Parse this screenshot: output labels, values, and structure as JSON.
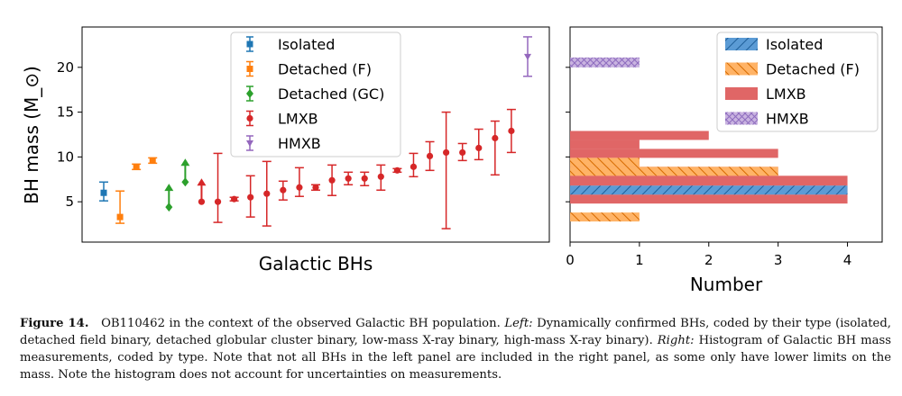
{
  "left_panel": {
    "ylabel": "BH mass (M_⊙)",
    "xlabel": "Galactic BHs",
    "yticks": [
      5,
      10,
      15,
      20
    ],
    "ylim": [
      0.5,
      24.5
    ]
  },
  "right_panel": {
    "xlabel": "Number",
    "xticks": [
      0,
      1,
      2,
      3,
      4
    ],
    "xlim": [
      0,
      4.5
    ]
  },
  "colors": {
    "Isolated": "#1f77b4",
    "Detached (F)": "#ff7f0e",
    "Detached (GC)": "#2ca02c",
    "LMXB": "#d62728",
    "HMXB": "#9467bd",
    "LMXB_hist": "#e06666"
  },
  "chart_data": [
    {
      "type": "scatter",
      "panel": "left",
      "title": "",
      "xlabel": "Galactic BHs",
      "ylabel": "BH mass (M_⊙)",
      "ylim": [
        0.5,
        24.5
      ],
      "legend_position": "top-center",
      "series": [
        {
          "name": "Isolated",
          "points": [
            {
              "x": 1,
              "y": 6.0,
              "lo": 5.1,
              "hi": 7.2
            }
          ]
        },
        {
          "name": "Detached (F)",
          "points": [
            {
              "x": 2,
              "y": 3.3,
              "lo": 2.6,
              "hi": 6.2
            },
            {
              "x": 3,
              "y": 8.9,
              "lo": 8.6,
              "hi": 9.2
            },
            {
              "x": 4,
              "y": 9.6,
              "lo": 9.3,
              "hi": 9.9
            }
          ]
        },
        {
          "name": "Detached (GC)",
          "points": [
            {
              "x": 5,
              "y": 4.4,
              "lower_limit": true
            },
            {
              "x": 6,
              "y": 7.2,
              "lower_limit": true
            }
          ]
        },
        {
          "name": "LMXB",
          "points": [
            {
              "x": 7,
              "y": 5.0,
              "lower_limit": true
            },
            {
              "x": 8,
              "y": 5.0,
              "lo": 2.7,
              "hi": 10.4
            },
            {
              "x": 9,
              "y": 5.3,
              "lo": 5.1,
              "hi": 5.5
            },
            {
              "x": 10,
              "y": 5.5,
              "lo": 3.3,
              "hi": 7.9
            },
            {
              "x": 11,
              "y": 5.9,
              "lo": 2.3,
              "hi": 9.5
            },
            {
              "x": 12,
              "y": 6.3,
              "lo": 5.2,
              "hi": 7.3
            },
            {
              "x": 13,
              "y": 6.6,
              "lo": 5.6,
              "hi": 8.8
            },
            {
              "x": 14,
              "y": 6.6,
              "lo": 6.3,
              "hi": 6.9
            },
            {
              "x": 15,
              "y": 7.4,
              "lo": 5.7,
              "hi": 9.1
            },
            {
              "x": 16,
              "y": 7.6,
              "lo": 6.9,
              "hi": 8.3
            },
            {
              "x": 17,
              "y": 7.6,
              "lo": 6.8,
              "hi": 8.3
            },
            {
              "x": 18,
              "y": 7.8,
              "lo": 6.3,
              "hi": 9.1
            },
            {
              "x": 19,
              "y": 8.5,
              "lo": 8.3,
              "hi": 8.7
            },
            {
              "x": 20,
              "y": 8.9,
              "lo": 7.8,
              "hi": 10.4
            },
            {
              "x": 21,
              "y": 10.1,
              "lo": 8.5,
              "hi": 11.7
            },
            {
              "x": 22,
              "y": 10.5,
              "lo": 2.0,
              "hi": 15.0
            },
            {
              "x": 23,
              "y": 10.5,
              "lo": 9.6,
              "hi": 11.5
            },
            {
              "x": 24,
              "y": 11.0,
              "lo": 9.7,
              "hi": 13.1
            },
            {
              "x": 25,
              "y": 12.1,
              "lo": 8.0,
              "hi": 14.0
            },
            {
              "x": 26,
              "y": 12.9,
              "lo": 10.5,
              "hi": 15.3
            }
          ]
        },
        {
          "name": "HMXB",
          "points": [
            {
              "x": 27,
              "y": 21.2,
              "lo": 19.0,
              "hi": 23.4
            }
          ]
        }
      ]
    },
    {
      "type": "bar",
      "panel": "right",
      "orientation": "horizontal",
      "xlabel": "Number",
      "ylabel": "",
      "xlim": [
        0,
        4.5
      ],
      "legend_position": "top-right",
      "series": [
        {
          "name": "Isolated",
          "hatch": "//",
          "bins": [
            {
              "lo": 5.8,
              "hi": 6.8,
              "count": 4
            }
          ]
        },
        {
          "name": "Detached (F)",
          "hatch": "\\\\",
          "bins": [
            {
              "lo": 2.8,
              "hi": 3.8,
              "count": 1
            },
            {
              "lo": 7.9,
              "hi": 8.9,
              "count": 3
            },
            {
              "lo": 8.9,
              "hi": 9.9,
              "count": 1
            }
          ]
        },
        {
          "name": "LMXB",
          "hatch": "",
          "bins": [
            {
              "lo": 4.8,
              "hi": 5.8,
              "count": 4
            },
            {
              "lo": 5.8,
              "hi": 6.8,
              "count": 4
            },
            {
              "lo": 6.8,
              "hi": 7.9,
              "count": 4
            },
            {
              "lo": 7.9,
              "hi": 8.9,
              "count": 3
            },
            {
              "lo": 8.9,
              "hi": 9.9,
              "count": 1
            },
            {
              "lo": 9.9,
              "hi": 10.9,
              "count": 3
            },
            {
              "lo": 10.9,
              "hi": 11.9,
              "count": 1
            },
            {
              "lo": 11.9,
              "hi": 12.9,
              "count": 2
            }
          ]
        },
        {
          "name": "HMXB",
          "hatch": "xx",
          "bins": [
            {
              "lo": 20.0,
              "hi": 21.1,
              "count": 1
            }
          ]
        }
      ]
    }
  ],
  "caption": {
    "label": "Figure 14.",
    "lead": "OB110462 in the context of the observed Galactic BH population.",
    "left_word": "Left:",
    "left_text": "Dynamically confirmed BHs, coded by their type (isolated, detached field binary, detached globular cluster binary, low-mass X-ray binary, high-mass X-ray binary).",
    "right_word": "Right:",
    "right_text": "Histogram of Galactic BH mass measurements, coded by type. Note that not all BHs in the left panel are included in the right panel, as some only have lower limits on the mass. Note the histogram does not account for uncertainties on measurements."
  }
}
